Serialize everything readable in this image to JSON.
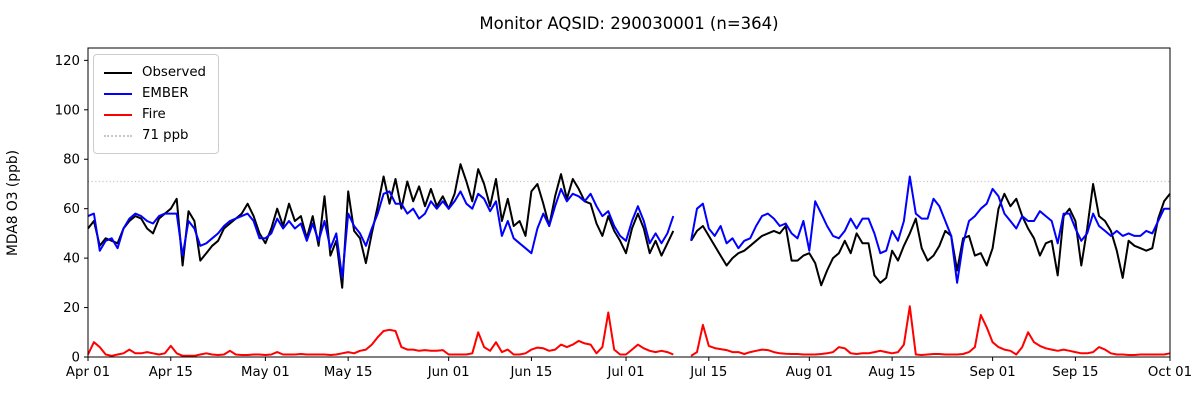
{
  "figure": {
    "title": "Monitor AQSID: 290030001 (n=364)",
    "ylabel": "MDA8 O3 (ppb)"
  },
  "legend": {
    "position": "upper left",
    "items": [
      {
        "label": "Observed",
        "color": "#000000",
        "style": "solid"
      },
      {
        "label": "EMBER",
        "color": "#0000ff",
        "style": "solid"
      },
      {
        "label": "Fire",
        "color": "#ff0000",
        "style": "solid"
      },
      {
        "label": "71 ppb",
        "color": "#c8c8c8",
        "style": "dotted"
      }
    ]
  },
  "chart_data": {
    "type": "line",
    "title": "Monitor AQSID: 290030001 (n=364)",
    "xlabel": "",
    "ylabel": "MDA8 O3 (ppb)",
    "ylim": [
      0,
      125
    ],
    "y_ticks": [
      0,
      20,
      40,
      60,
      80,
      100,
      120
    ],
    "grid": false,
    "legend_position": "upper left",
    "n_points": 184,
    "x_unit": "day index from Apr 01",
    "x_tick_day_indices": [
      0,
      14,
      30,
      44,
      61,
      75,
      91,
      105,
      122,
      136,
      153,
      167,
      183
    ],
    "x_tick_labels": [
      "Apr 01",
      "Apr 15",
      "May 01",
      "May 15",
      "Jun 01",
      "Jun 15",
      "Jul 01",
      "Jul 15",
      "Aug 01",
      "Aug 15",
      "Sep 01",
      "Sep 15",
      "Oct 01"
    ],
    "threshold": {
      "value": 71,
      "label": "71 ppb",
      "color": "#c8c8c8",
      "style": "dotted"
    },
    "series": [
      {
        "name": "Observed",
        "color": "#000000",
        "values": [
          52,
          55,
          45,
          48,
          47,
          46,
          52,
          55,
          57,
          56,
          52,
          50,
          56,
          58,
          60,
          64,
          37,
          59,
          55,
          39,
          42,
          45,
          47,
          52,
          54,
          56,
          58,
          62,
          57,
          50,
          46,
          52,
          60,
          53,
          62,
          55,
          57,
          48,
          57,
          45,
          65,
          41,
          47,
          28,
          67,
          51,
          48,
          38,
          50,
          61,
          73,
          62,
          72,
          60,
          71,
          63,
          69,
          61,
          68,
          61,
          65,
          60,
          66,
          78,
          71,
          63,
          76,
          70,
          61,
          72,
          55,
          64,
          53,
          55,
          49,
          67,
          70,
          62,
          53,
          65,
          74,
          64,
          72,
          68,
          63,
          62,
          54,
          49,
          57,
          51,
          47,
          42,
          52,
          58,
          52,
          42,
          47,
          41,
          46,
          51,
          null,
          null,
          47,
          51,
          53,
          49,
          45,
          41,
          37,
          40,
          42,
          43,
          45,
          47,
          49,
          50,
          51,
          50,
          53,
          39,
          39,
          41,
          42,
          38,
          29,
          35,
          40,
          42,
          47,
          42,
          50,
          46,
          46,
          33,
          30,
          32,
          43,
          39,
          45,
          50,
          56,
          44,
          39,
          41,
          45,
          51,
          49,
          35,
          48,
          49,
          41,
          42,
          37,
          44,
          60,
          66,
          61,
          64,
          57,
          52,
          48,
          41,
          46,
          47,
          33,
          57,
          60,
          55,
          37,
          52,
          70,
          57,
          55,
          51,
          43,
          32,
          47,
          45,
          44,
          43,
          44,
          56,
          63,
          66
        ]
      },
      {
        "name": "EMBER",
        "color": "#0000ff",
        "values": [
          57,
          58,
          43,
          47,
          48,
          44,
          52,
          56,
          58,
          57,
          55,
          54,
          57,
          58,
          58,
          58,
          41,
          55,
          52,
          45,
          46,
          48,
          50,
          53,
          55,
          56,
          57,
          58,
          55,
          48,
          48,
          50,
          56,
          52,
          55,
          52,
          54,
          47,
          54,
          47,
          55,
          44,
          50,
          32,
          58,
          53,
          50,
          45,
          52,
          58,
          66,
          67,
          62,
          62,
          58,
          60,
          56,
          58,
          63,
          60,
          63,
          60,
          63,
          67,
          62,
          60,
          66,
          64,
          59,
          63,
          49,
          55,
          48,
          46,
          44,
          42,
          52,
          58,
          53,
          61,
          68,
          63,
          66,
          65,
          63,
          66,
          61,
          57,
          59,
          53,
          49,
          47,
          55,
          61,
          55,
          46,
          50,
          46,
          50,
          57,
          null,
          null,
          47,
          60,
          62,
          52,
          49,
          53,
          46,
          48,
          44,
          47,
          48,
          53,
          57,
          58,
          56,
          53,
          54,
          50,
          48,
          55,
          43,
          63,
          58,
          53,
          49,
          48,
          51,
          56,
          52,
          56,
          56,
          50,
          42,
          43,
          51,
          47,
          55,
          73,
          58,
          56,
          56,
          64,
          61,
          55,
          49,
          30,
          46,
          55,
          57,
          60,
          62,
          68,
          65,
          58,
          55,
          52,
          57,
          55,
          55,
          59,
          57,
          55,
          46,
          58,
          58,
          52,
          47,
          50,
          58,
          53,
          51,
          49,
          51,
          49,
          50,
          49,
          49,
          51,
          50,
          55,
          60,
          60
        ]
      },
      {
        "name": "Fire",
        "color": "#ff0000",
        "values": [
          1,
          6,
          4,
          1,
          0.5,
          1,
          1.5,
          3,
          1.5,
          1.5,
          2,
          1.5,
          1,
          1.5,
          4.5,
          1.5,
          0.5,
          0.5,
          0.5,
          1,
          1.5,
          1,
          0.8,
          1,
          2.5,
          1,
          0.8,
          0.8,
          1,
          1,
          0.8,
          1,
          2,
          1,
          1,
          1,
          1.2,
          1,
          1,
          1,
          1,
          0.8,
          1,
          1.5,
          2,
          1.5,
          2.5,
          3,
          5,
          8,
          10.5,
          11,
          10.5,
          4,
          3,
          3,
          2.5,
          2.8,
          2.5,
          2.5,
          2.8,
          1,
          1,
          1,
          1,
          1.5,
          10,
          4,
          2.5,
          6,
          2,
          3,
          1,
          1,
          1.5,
          3,
          3.8,
          3.5,
          2.5,
          3,
          5,
          4,
          5,
          6.5,
          5.5,
          5,
          1.5,
          4,
          18,
          3,
          1,
          1,
          3,
          5,
          3.5,
          2.5,
          2,
          2.5,
          2,
          1,
          null,
          null,
          0.5,
          2,
          13,
          4.5,
          3.6,
          3.2,
          2.8,
          2,
          2,
          1.2,
          2,
          2.5,
          3,
          2.8,
          2,
          1.5,
          1.3,
          1.2,
          1.2,
          1,
          1,
          1,
          1.2,
          1.5,
          2,
          4,
          3.5,
          1.5,
          1.2,
          1.5,
          1.5,
          2,
          2.5,
          2,
          1.5,
          2,
          5,
          20.5,
          1,
          0.8,
          1,
          1.2,
          1.2,
          1,
          1,
          1,
          1.2,
          2,
          4,
          17,
          12,
          6,
          4,
          3,
          2.5,
          1,
          4,
          10,
          6,
          4.5,
          3.5,
          3,
          2.5,
          3,
          2.5,
          2,
          1.5,
          1.5,
          2,
          4,
          3,
          1.5,
          1,
          1,
          0.8,
          0.8,
          1,
          1,
          1,
          1,
          1,
          1.5
        ]
      }
    ]
  }
}
